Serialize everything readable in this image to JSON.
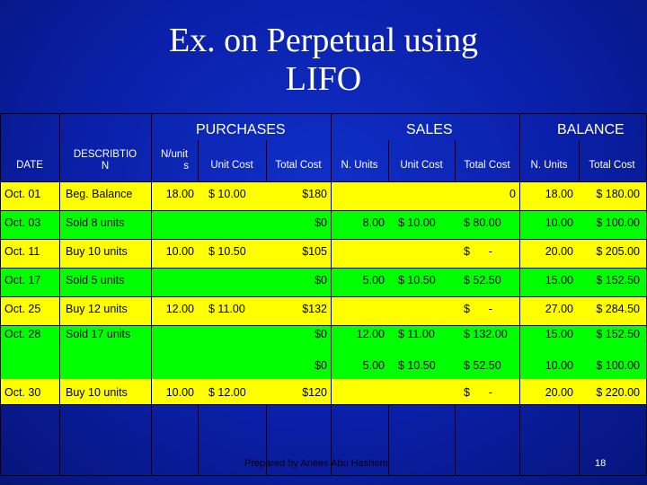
{
  "slide": {
    "title_line1": "Ex. on Perpetual using",
    "title_line2": "LIFO",
    "footer": "Prepared by Anees Abu Hashem",
    "page_number": "18"
  },
  "sections": {
    "purchases": "PURCHASES",
    "sales": "SALES",
    "balance": "BALANCE"
  },
  "headers": {
    "date": "DATE",
    "description_1": "DESCRIBTIO",
    "description_2": "N",
    "n_unit_1": "N/unit",
    "n_unit_2": "s",
    "p_unit_cost": "Unit Cost",
    "p_total_cost": "Total Cost",
    "s_n_units": "N. Units",
    "s_unit_cost": "Unit Cost",
    "s_total_cost": "Total Cost",
    "b_n_units": "N. Units",
    "b_total_cost": "Total Cost"
  },
  "rows": [
    {
      "date": "Oct. 01",
      "desc": "Beg. Balance",
      "p_units": "18.00",
      "p_unit_cost": "$ 10.00",
      "p_total": "$180",
      "s_units": "",
      "s_unit_cost": "",
      "s_total": "0",
      "b_units": "18.00",
      "b_total": "$ 180.00"
    },
    {
      "date": "Oct. 03",
      "desc": "Sold 8 units",
      "p_units": "",
      "p_unit_cost": "",
      "p_total": "$0",
      "s_units": "8.00",
      "s_unit_cost": "$ 10.00",
      "s_total": "$ 80.00",
      "b_units": "10.00",
      "b_total": "$ 100.00"
    },
    {
      "date": "Oct. 11",
      "desc": "Buy 10 units",
      "p_units": "10.00",
      "p_unit_cost": "$ 10.50",
      "p_total": "$105",
      "s_units": "",
      "s_unit_cost": "",
      "s_total": "$      -",
      "b_units": "20.00",
      "b_total": "$ 205.00"
    },
    {
      "date": "Oct. 17",
      "desc": "Sold 5 units",
      "p_units": "",
      "p_unit_cost": "",
      "p_total": "$0",
      "s_units": "5.00",
      "s_unit_cost": "$ 10.50",
      "s_total": "$ 52.50",
      "b_units": "15.00",
      "b_total": "$ 152.50"
    },
    {
      "date": "Oct. 25",
      "desc": "Buy 12 units",
      "p_units": "12.00",
      "p_unit_cost": "$ 11.00",
      "p_total": "$132",
      "s_units": "",
      "s_unit_cost": "",
      "s_total": "$      -",
      "b_units": "27.00",
      "b_total": "$ 284.50"
    },
    {
      "date": "Oct. 28",
      "desc": "Sold 17 units",
      "p_units": "",
      "p_unit_cost": "",
      "p_total": "$0",
      "s_units": "12.00",
      "s_unit_cost": "$ 11.00",
      "s_total": "$ 132.00",
      "b_units": "15.00",
      "b_total": "$ 152.50"
    },
    {
      "date": "",
      "desc": "",
      "p_units": "",
      "p_unit_cost": "",
      "p_total": "$0",
      "s_units": "5.00",
      "s_unit_cost": "$ 10.50",
      "s_total": "$ 52.50",
      "b_units": "10.00",
      "b_total": "$ 100.00"
    },
    {
      "date": "Oct. 30",
      "desc": "Buy 10 units",
      "p_units": "10.00",
      "p_unit_cost": "$ 12.00",
      "p_total": "$120",
      "s_units": "",
      "s_unit_cost": "",
      "s_total": "$      -",
      "b_units": "20.00",
      "b_total": "$ 220.00"
    }
  ]
}
